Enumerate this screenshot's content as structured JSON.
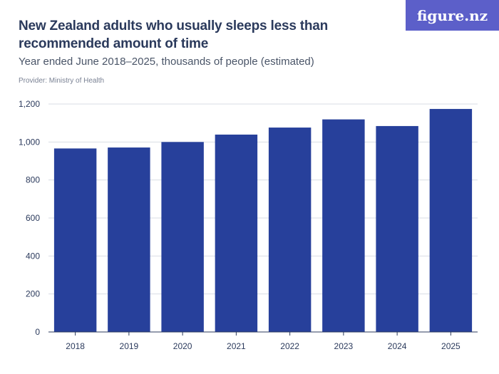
{
  "header": {
    "title": "New Zealand adults who usually sleeps less than recommended amount of time",
    "subtitle": "Year ended June 2018–2025, thousands of people (estimated)",
    "provider": "Provider: Ministry of Health",
    "logo_text": "figure.nz"
  },
  "colors": {
    "bar": "#27409b",
    "grid": "#d9dde5",
    "axis": "#2b3a5c",
    "logo_bg": "#5c5fc9"
  },
  "chart_data": {
    "type": "bar",
    "categories": [
      "2018",
      "2019",
      "2020",
      "2021",
      "2022",
      "2023",
      "2024",
      "2025"
    ],
    "values": [
      966,
      971,
      1000,
      1039,
      1076,
      1119,
      1084,
      1174
    ],
    "ylim": [
      0,
      1200
    ],
    "yticks": [
      0,
      200,
      400,
      600,
      800,
      1000,
      1200
    ],
    "ytick_labels": [
      "0",
      "200",
      "400",
      "600",
      "800",
      "1,000",
      "1,200"
    ],
    "grid": true,
    "legend": "none"
  }
}
